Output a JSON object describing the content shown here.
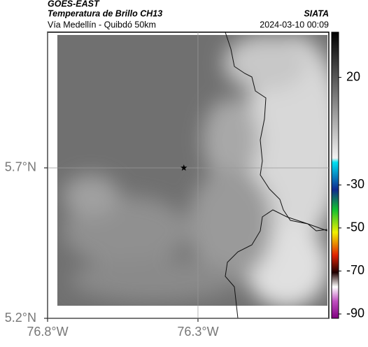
{
  "header": {
    "source": "GOES-EAST",
    "title": "Temperatura de Brillo CH13",
    "location": "Vía Medellín - Quibdó 50km",
    "agency": "SIATA",
    "datetime": "2024-03-10 00:09"
  },
  "map": {
    "xlim": [
      -76.8,
      -75.865
    ],
    "ylim": [
      5.2,
      6.151
    ],
    "xticks": [
      {
        "value": -76.8,
        "label": "76.8°W"
      },
      {
        "value": -76.3,
        "label": "76.3°W"
      }
    ],
    "yticks": [
      {
        "value": 5.2,
        "label": "5.2°N"
      },
      {
        "value": 5.7,
        "label": "5.7°N"
      }
    ],
    "grid": true,
    "marker": {
      "lon": -76.347,
      "lat": 5.7
    }
  },
  "colorbar": {
    "lim": [
      -92,
      41
    ],
    "ticks": [
      20,
      -30,
      -50,
      -70,
      -90
    ]
  }
}
